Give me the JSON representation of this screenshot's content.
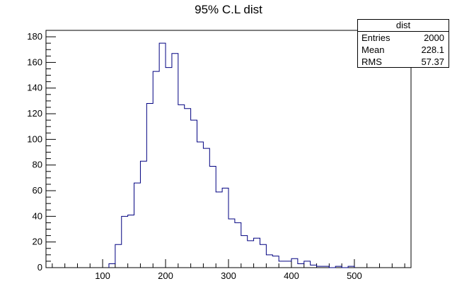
{
  "chart_data": {
    "type": "histogram",
    "title": "95% C.L dist",
    "xlabel": "",
    "ylabel": "",
    "xlim": [
      10,
      590
    ],
    "ylim": [
      0,
      185
    ],
    "x_ticks": [
      100,
      200,
      300,
      400,
      500
    ],
    "y_ticks": [
      0,
      20,
      40,
      60,
      80,
      100,
      120,
      140,
      160,
      180
    ],
    "bin_width": 10,
    "bins_start": [
      110,
      120,
      130,
      140,
      150,
      160,
      170,
      180,
      190,
      200,
      210,
      220,
      230,
      240,
      250,
      260,
      270,
      280,
      290,
      300,
      310,
      320,
      330,
      340,
      350,
      360,
      370,
      380,
      390,
      400,
      410,
      420,
      430,
      440,
      450,
      460,
      470,
      480,
      490
    ],
    "counts": [
      3,
      18,
      40,
      41,
      66,
      83,
      128,
      153,
      175,
      156,
      167,
      127,
      124,
      115,
      98,
      93,
      79,
      59,
      62,
      38,
      35,
      25,
      21,
      23,
      18,
      10,
      9,
      5,
      5,
      7,
      3,
      5,
      2,
      1,
      1,
      0,
      1,
      0,
      1
    ],
    "line_color": "#000080",
    "stats_box": {
      "header": "dist",
      "rows": [
        {
          "label": "Entries",
          "value": "2000"
        },
        {
          "label": "Mean",
          "value": "228.1"
        },
        {
          "label": "RMS",
          "value": "57.37"
        }
      ]
    }
  }
}
